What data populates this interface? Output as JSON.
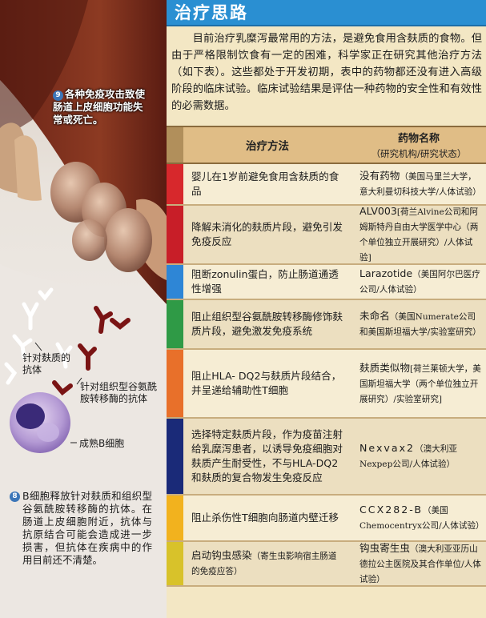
{
  "title": "治疗思路",
  "intro": "目前治疗乳糜泻最常用的方法，是避免食用含麸质的食物。但由于严格限制饮食有一定的困难，科学家正在研究其他治疗方法（如下表）。这些都处于开发初期，表中的药物都还没有进入高级阶段的临床试验。临床试验结果是评估一种药物的安全性和有效性的必需数据。",
  "table": {
    "col_method": "治疗方法",
    "col_drug": "药物名称",
    "col_drug_sub": "（研究机构/研究状态）",
    "rows": [
      {
        "color": "#d7282c",
        "method": "婴儿在1岁前避免食用含麸质的食品",
        "method_note": "",
        "drug": "没有药物",
        "drug_note": "（美国马里兰大学，意大利曼切科技大学/人体试验）"
      },
      {
        "color": "#c81e28",
        "method": "降解未消化的麸质片段，避免引发免疫反应",
        "method_note": "",
        "drug": "ALV003",
        "drug_note": "[荷兰Alvine公司和阿姆斯特丹自由大学医学中心（两个单位独立开展研究）/人体试验]"
      },
      {
        "color": "#2e86d6",
        "method": "阻断zonulin蛋白，防止肠道通透性增强",
        "method_note": "",
        "drug": "Larazotide",
        "drug_note": "（美国阿尔巴医疗公司/人体试验）"
      },
      {
        "color": "#2f9a46",
        "method": "阻止组织型谷氨酰胺转移酶修饰麸质片段，避免激发免疫系统",
        "method_note": "",
        "drug": "未命名",
        "drug_note": "（美国Numerate公司和美国斯坦福大学/实验室研究）"
      },
      {
        "color": "#e8702a",
        "method": "阻止HLA- DQ2与麸质片段结合，并呈递给辅助性T细胞",
        "method_note": "",
        "drug": "麸质类似物",
        "drug_note": "[荷兰莱顿大学，美国斯坦福大学（两个单位独立开展研究）/实验室研究]"
      },
      {
        "color": "#1a2a78",
        "method": "选择特定麸质片段，作为疫苗注射给乳糜泻患者，以诱导免疫细胞对麸质产生耐受性，不与HLA-DQ2和麸质的复合物发生免疫反应",
        "method_note": "",
        "drug": "Nexvax2",
        "drug_note": "（澳大利亚Nexpep公司/人体试验）"
      },
      {
        "color": "#f2b21e",
        "method": "阻止杀伤性T细胞向肠道内壁迁移",
        "method_note": "",
        "drug": "CCX282-B",
        "drug_note": "（美国Chemocentryx公司/人体试验）"
      },
      {
        "color": "#d8c22a",
        "method": "启动钩虫感染",
        "method_note": "（寄生虫影响宿主肠道的免疫应答）",
        "drug": "钩虫寄生虫",
        "drug_note": "（澳大利亚亚历山德拉公主医院及其合作单位/人体试验）"
      }
    ]
  },
  "illustration": {
    "note9_num": "9",
    "note9_text": "各种免疫攻击致使肠道上皮细胞功能失常或死亡。",
    "label_antibody_gluten": "针对麸质的抗体",
    "label_antibody_ttg": "针对组织型谷氨酰胺转移酶的抗体",
    "label_b_cell": "成熟B细胞",
    "note8_num": "8",
    "note8_text": "B细胞释放针对麸质和组织型谷氨酰胺转移酶的抗体。在肠道上皮细胞附近，抗体与抗原结合可能会造成进一步损害，但抗体在疾病中的作用目前还不清楚。"
  }
}
